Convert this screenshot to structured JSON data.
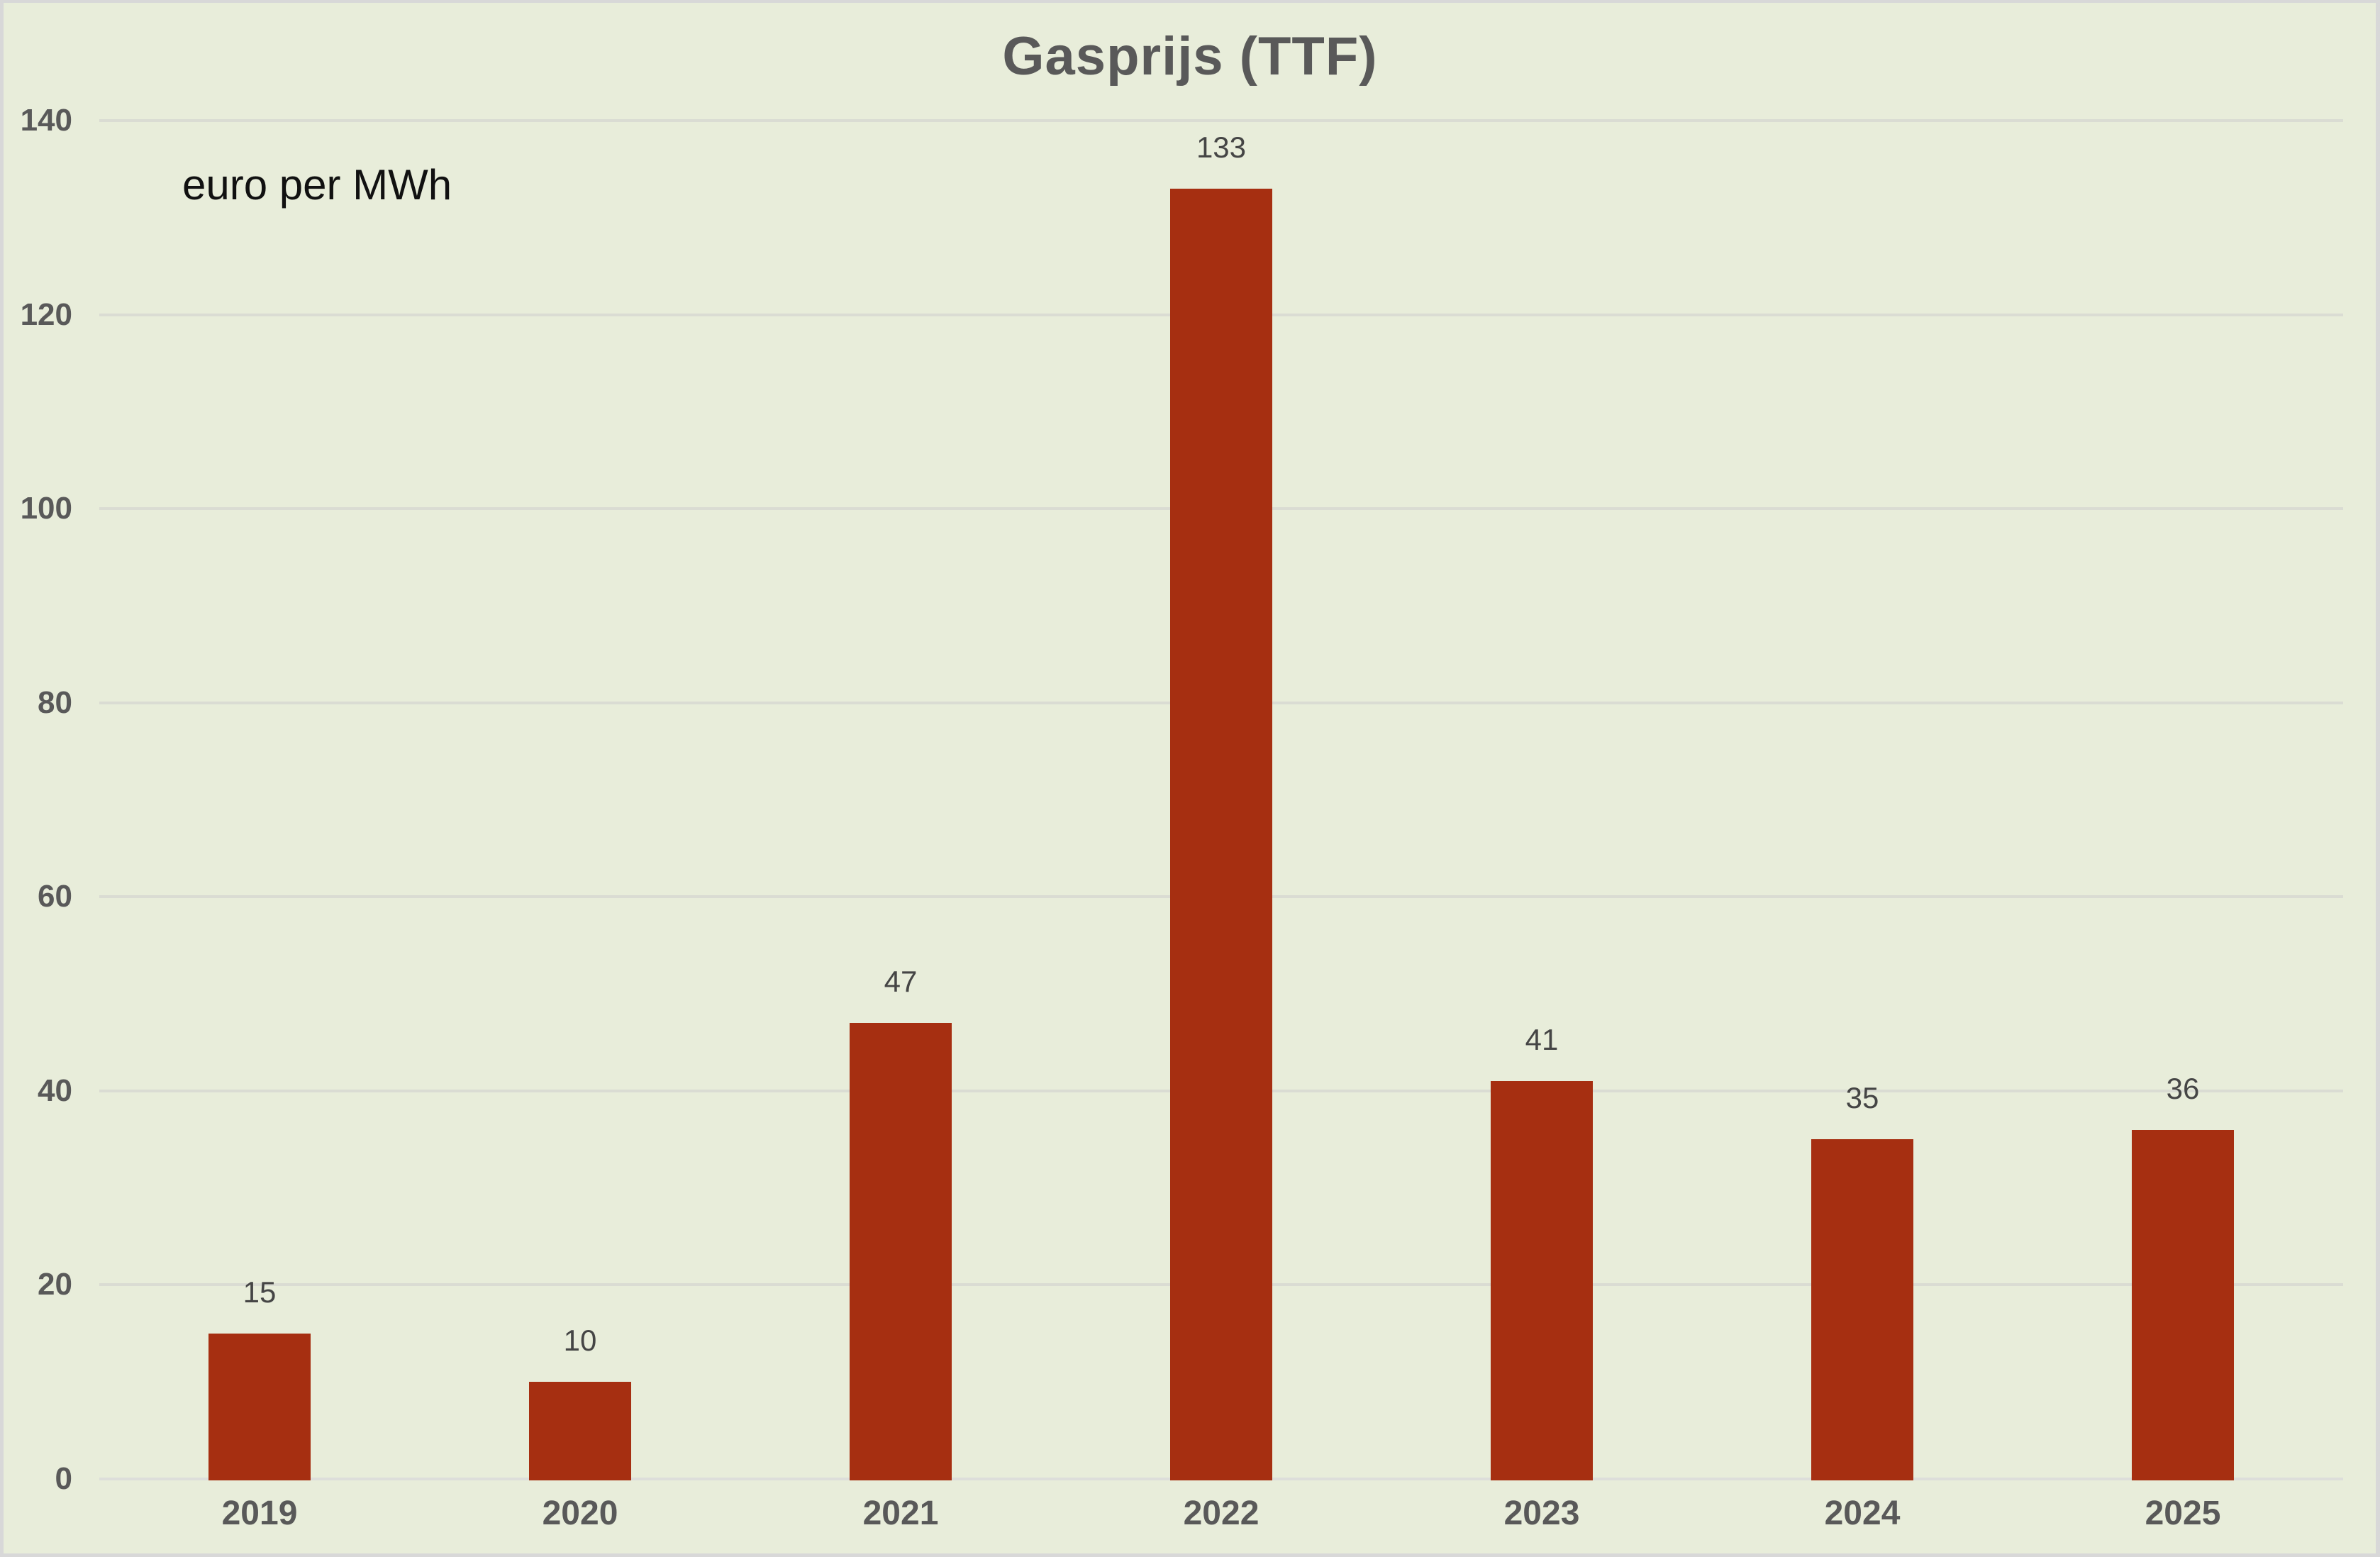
{
  "title": "Gasprijs (TTF)",
  "unit_note": "euro per MWh",
  "colors": {
    "background": "#e8edda",
    "frame": "#d8d8d8",
    "bar": "#a62f11",
    "gridline": "#dadcd3",
    "axis_line": "#dddeda",
    "title_text": "#595959",
    "tick_text": "#595959",
    "value_text": "#454545",
    "note_text": "#111111"
  },
  "chart_data": {
    "type": "bar",
    "title": "Gasprijs (TTF)",
    "ylabel": "euro per MWh",
    "xlabel": "",
    "categories": [
      "2019",
      "2020",
      "2021",
      "2022",
      "2023",
      "2024",
      "2025"
    ],
    "values": [
      15,
      10,
      47,
      133,
      41,
      35,
      36
    ],
    "value_labels": [
      "15",
      "10",
      "47",
      "133",
      "41",
      "35",
      "36"
    ],
    "series_name": "Gasprijs (TTF) euro per MWh",
    "ylim": [
      0,
      140
    ],
    "yticks": [
      0,
      20,
      40,
      60,
      80,
      100,
      120,
      140
    ],
    "grid": true,
    "legend_position": "none",
    "bar_color": "#a62f11"
  }
}
